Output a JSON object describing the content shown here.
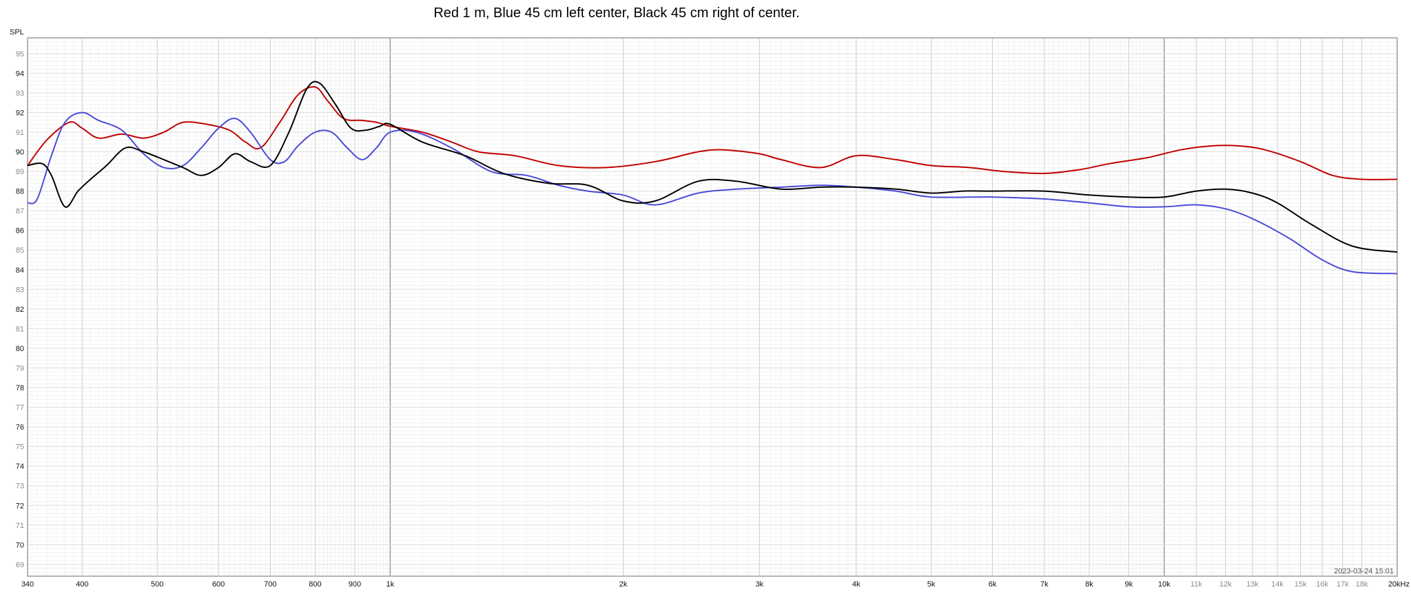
{
  "chart_data": {
    "type": "line",
    "title": "Red 1 m, Blue 45 cm left center, Black 45 cm right of center.",
    "ylabel": "SPL",
    "xscale": "log",
    "xlim": [
      340,
      20000
    ],
    "ylim": [
      68.4,
      95.8
    ],
    "grid": true,
    "timestamp": "2023-03-24 15:01",
    "y_ticks": [
      {
        "v": 95,
        "label": "95",
        "major": false
      },
      {
        "v": 94,
        "label": "94",
        "major": true
      },
      {
        "v": 93,
        "label": "93",
        "major": false
      },
      {
        "v": 92,
        "label": "92",
        "major": true
      },
      {
        "v": 91,
        "label": "91",
        "major": false
      },
      {
        "v": 90,
        "label": "90",
        "major": true
      },
      {
        "v": 89,
        "label": "89",
        "major": false
      },
      {
        "v": 88,
        "label": "88",
        "major": true
      },
      {
        "v": 87,
        "label": "87",
        "major": false
      },
      {
        "v": 86,
        "label": "86",
        "major": true
      },
      {
        "v": 85,
        "label": "85",
        "major": false
      },
      {
        "v": 84,
        "label": "84",
        "major": true
      },
      {
        "v": 83,
        "label": "83",
        "major": false
      },
      {
        "v": 82,
        "label": "82",
        "major": true
      },
      {
        "v": 81,
        "label": "81",
        "major": false
      },
      {
        "v": 80,
        "label": "80",
        "major": true
      },
      {
        "v": 79,
        "label": "79",
        "major": false
      },
      {
        "v": 78,
        "label": "78",
        "major": true
      },
      {
        "v": 77,
        "label": "77",
        "major": false
      },
      {
        "v": 76,
        "label": "76",
        "major": true
      },
      {
        "v": 75,
        "label": "75",
        "major": false
      },
      {
        "v": 74,
        "label": "74",
        "major": true
      },
      {
        "v": 73,
        "label": "73",
        "major": false
      },
      {
        "v": 72,
        "label": "72",
        "major": true
      },
      {
        "v": 71,
        "label": "71",
        "major": false
      },
      {
        "v": 70,
        "label": "70",
        "major": true
      },
      {
        "v": 69,
        "label": "69",
        "major": false
      }
    ],
    "x_ticks": [
      {
        "v": 340,
        "label": "340",
        "major": true
      },
      {
        "v": 400,
        "label": "400",
        "major": true
      },
      {
        "v": 500,
        "label": "500",
        "major": true
      },
      {
        "v": 600,
        "label": "600",
        "major": true
      },
      {
        "v": 700,
        "label": "700",
        "major": true
      },
      {
        "v": 800,
        "label": "800",
        "major": true
      },
      {
        "v": 900,
        "label": "900",
        "major": true
      },
      {
        "v": 1000,
        "label": "1k",
        "major": true
      },
      {
        "v": 2000,
        "label": "2k",
        "major": true
      },
      {
        "v": 3000,
        "label": "3k",
        "major": true
      },
      {
        "v": 4000,
        "label": "4k",
        "major": true
      },
      {
        "v": 5000,
        "label": "5k",
        "major": true
      },
      {
        "v": 6000,
        "label": "6k",
        "major": true
      },
      {
        "v": 7000,
        "label": "7k",
        "major": true
      },
      {
        "v": 8000,
        "label": "8k",
        "major": true
      },
      {
        "v": 9000,
        "label": "9k",
        "major": true
      },
      {
        "v": 10000,
        "label": "10k",
        "major": true
      },
      {
        "v": 11000,
        "label": "11k",
        "major": false
      },
      {
        "v": 12000,
        "label": "12k",
        "major": false
      },
      {
        "v": 13000,
        "label": "13k",
        "major": false
      },
      {
        "v": 14000,
        "label": "14k",
        "major": false
      },
      {
        "v": 15000,
        "label": "15k",
        "major": false
      },
      {
        "v": 16000,
        "label": "16k",
        "major": false
      },
      {
        "v": 17000,
        "label": "17k",
        "major": false
      },
      {
        "v": 18000,
        "label": "18k",
        "major": false
      },
      {
        "v": 20000,
        "label": "20kHz",
        "major": true
      }
    ],
    "series": [
      {
        "color": "#c00000",
        "x": [
          340,
          360,
          385,
          400,
          420,
          450,
          480,
          510,
          540,
          580,
          620,
          650,
          680,
          720,
          760,
          800,
          830,
          870,
          920,
          960,
          1000,
          1100,
          1200,
          1300,
          1450,
          1650,
          1900,
          2200,
          2500,
          2700,
          3000,
          3200,
          3600,
          4000,
          4500,
          5000,
          5600,
          6200,
          7000,
          7800,
          8500,
          9500,
          10500,
          11500,
          12500,
          13500,
          15000,
          16500,
          18000,
          20000
        ],
        "y": [
          89.3,
          90.6,
          91.5,
          91.2,
          90.7,
          90.9,
          90.7,
          91.0,
          91.5,
          91.4,
          91.1,
          90.5,
          90.2,
          91.5,
          92.9,
          93.3,
          92.6,
          91.7,
          91.6,
          91.5,
          91.3,
          91.0,
          90.5,
          90.0,
          89.8,
          89.3,
          89.2,
          89.5,
          90.0,
          90.1,
          89.9,
          89.6,
          89.2,
          89.8,
          89.6,
          89.3,
          89.2,
          89.0,
          88.9,
          89.1,
          89.4,
          89.7,
          90.1,
          90.3,
          90.3,
          90.1,
          89.5,
          88.8,
          88.6,
          88.6
        ]
      },
      {
        "color": "#4a4ad8",
        "x": [
          340,
          350,
          365,
          380,
          400,
          420,
          450,
          480,
          510,
          540,
          570,
          600,
          630,
          660,
          700,
          730,
          760,
          800,
          840,
          880,
          920,
          960,
          1000,
          1080,
          1200,
          1350,
          1500,
          1650,
          1800,
          2000,
          2200,
          2500,
          2800,
          3200,
          3600,
          4000,
          4500,
          5000,
          6000,
          7000,
          8000,
          9000,
          10000,
          11000,
          12000,
          13000,
          14500,
          16000,
          17500,
          20000
        ],
        "y": [
          87.4,
          87.6,
          89.8,
          91.5,
          92.0,
          91.6,
          91.1,
          89.9,
          89.2,
          89.3,
          90.2,
          91.2,
          91.7,
          91.0,
          89.6,
          89.5,
          90.3,
          91.0,
          91.0,
          90.2,
          89.6,
          90.2,
          91.0,
          91.0,
          90.2,
          89.0,
          88.8,
          88.3,
          88.0,
          87.8,
          87.3,
          87.9,
          88.1,
          88.2,
          88.3,
          88.2,
          88.0,
          87.7,
          87.7,
          87.6,
          87.4,
          87.2,
          87.2,
          87.3,
          87.1,
          86.6,
          85.6,
          84.5,
          83.9,
          83.8
        ]
      },
      {
        "color": "#000000",
        "x": [
          340,
          355,
          365,
          380,
          395,
          410,
          430,
          455,
          480,
          510,
          540,
          570,
          600,
          630,
          660,
          700,
          740,
          780,
          810,
          850,
          890,
          930,
          970,
          1000,
          1100,
          1250,
          1400,
          1600,
          1800,
          2000,
          2200,
          2500,
          2800,
          3200,
          3600,
          4000,
          4500,
          5000,
          5500,
          6000,
          7000,
          8000,
          9000,
          10000,
          11000,
          12000,
          13000,
          14000,
          15500,
          17500,
          20000
        ],
        "y": [
          89.3,
          89.4,
          88.8,
          87.2,
          88.0,
          88.6,
          89.3,
          90.2,
          90.0,
          89.6,
          89.2,
          88.8,
          89.2,
          89.9,
          89.5,
          89.3,
          91.0,
          93.2,
          93.5,
          92.4,
          91.2,
          91.1,
          91.3,
          91.4,
          90.5,
          89.8,
          88.9,
          88.4,
          88.3,
          87.5,
          87.5,
          88.5,
          88.5,
          88.1,
          88.2,
          88.2,
          88.1,
          87.9,
          88.0,
          88.0,
          88.0,
          87.8,
          87.7,
          87.7,
          88.0,
          88.1,
          87.9,
          87.4,
          86.3,
          85.2,
          84.9
        ]
      }
    ]
  }
}
